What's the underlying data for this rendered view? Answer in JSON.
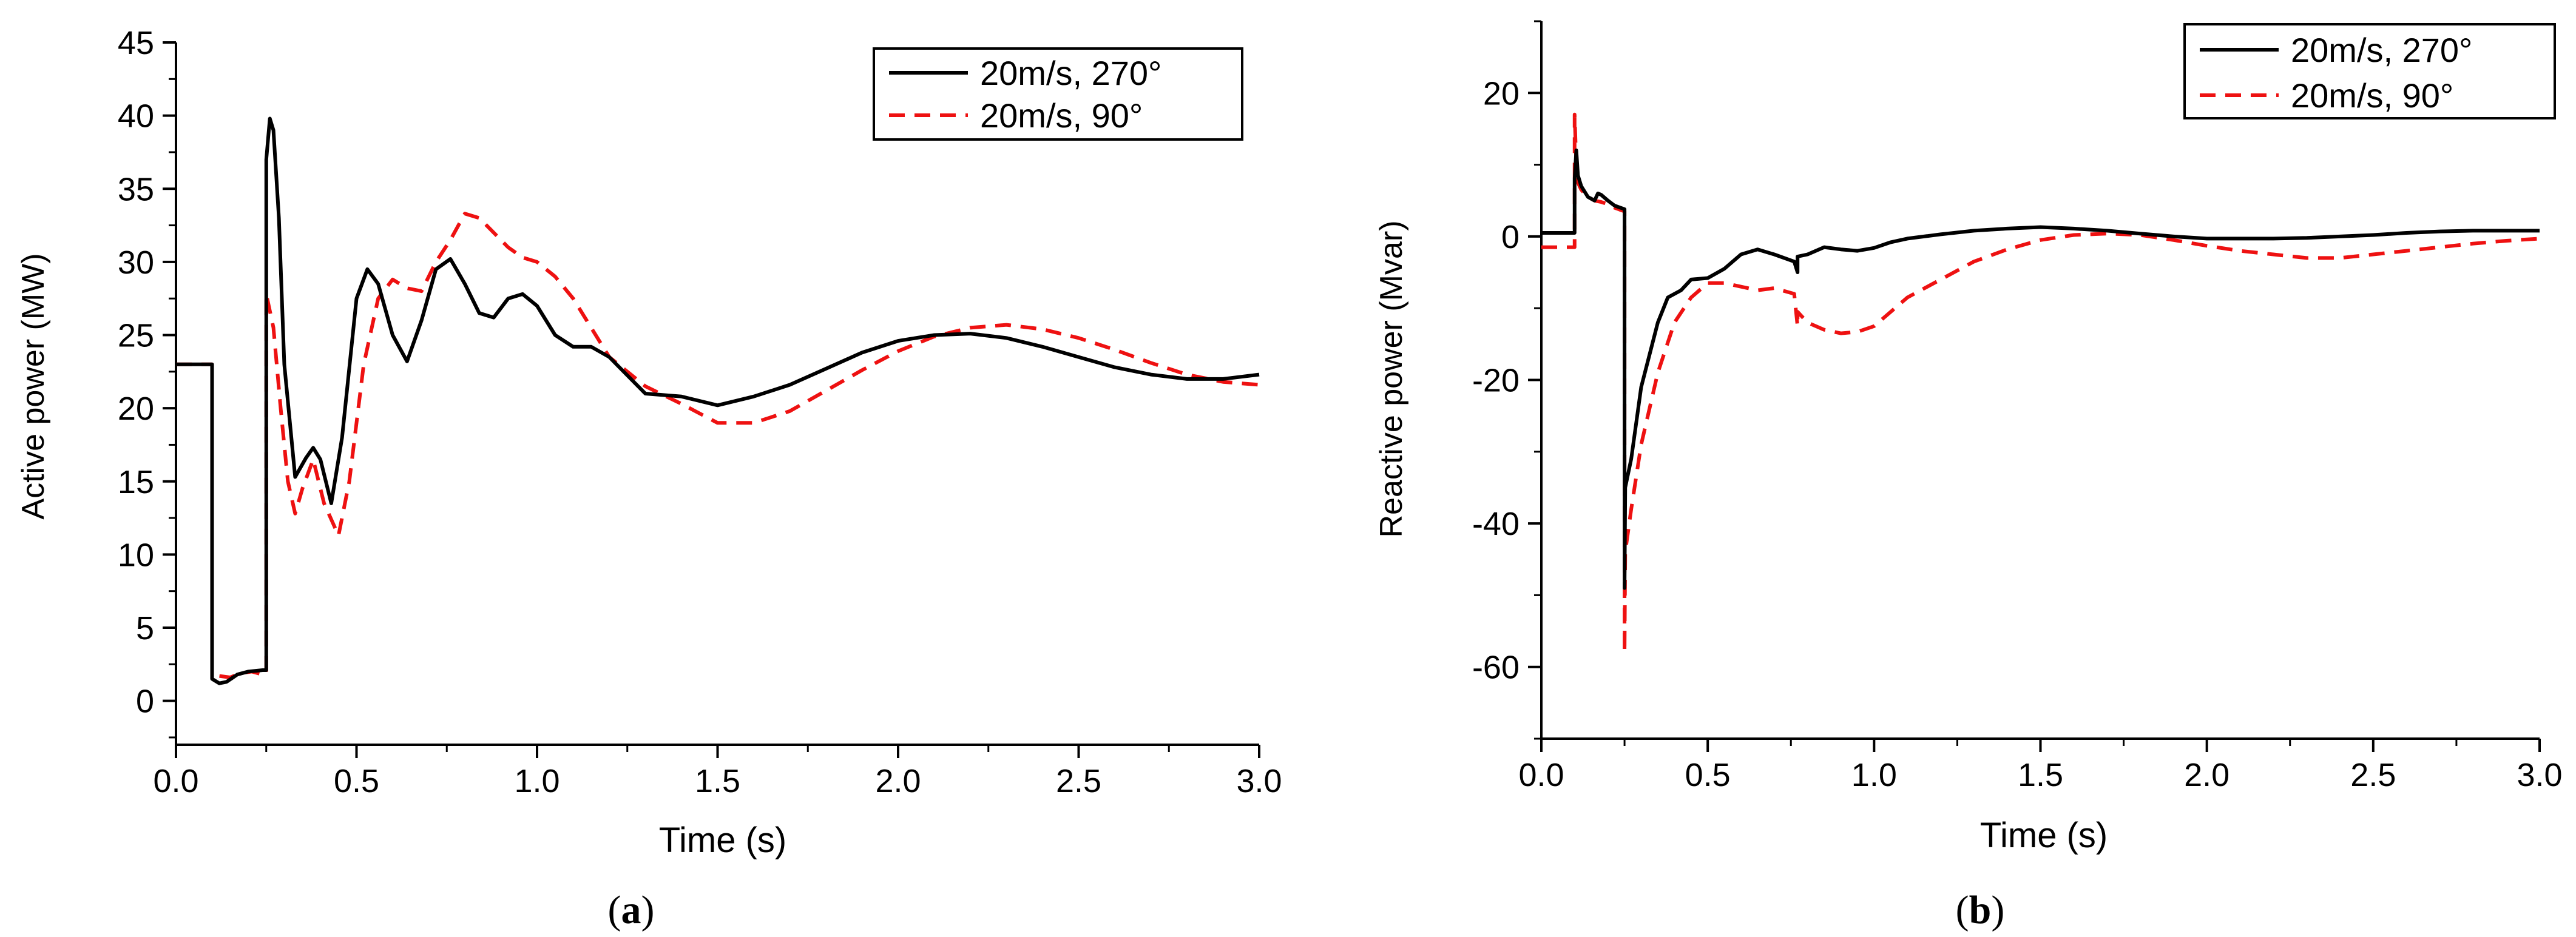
{
  "chart_data": [
    {
      "type": "line",
      "panel_label": "a",
      "xlabel": "Time (s)",
      "ylabel": "Active power (MW)",
      "xlim": [
        0,
        3
      ],
      "ylim": [
        -3,
        45
      ],
      "xticks": [
        0.0,
        0.5,
        1.0,
        1.5,
        2.0,
        2.5,
        3.0
      ],
      "xtick_labels": [
        "0.0",
        "0.5",
        "1.0",
        "1.5",
        "2.0",
        "2.5",
        "3.0"
      ],
      "yticks": [
        0,
        5,
        10,
        15,
        20,
        25,
        30,
        35,
        40,
        45
      ],
      "ytick_labels": [
        "0",
        "5",
        "10",
        "15",
        "20",
        "25",
        "30",
        "35",
        "40",
        "45"
      ],
      "legend_position": "top-right",
      "series": [
        {
          "name": "20m/s, 270°",
          "color": "#000000",
          "style": "solid",
          "x": [
            0,
            0.1,
            0.1,
            0.12,
            0.14,
            0.17,
            0.2,
            0.24,
            0.25,
            0.25,
            0.26,
            0.27,
            0.285,
            0.3,
            0.33,
            0.36,
            0.38,
            0.4,
            0.43,
            0.46,
            0.5,
            0.53,
            0.56,
            0.6,
            0.64,
            0.68,
            0.72,
            0.76,
            0.8,
            0.84,
            0.88,
            0.92,
            0.96,
            1.0,
            1.05,
            1.1,
            1.15,
            1.2,
            1.3,
            1.4,
            1.5,
            1.6,
            1.7,
            1.8,
            1.9,
            2.0,
            2.1,
            2.2,
            2.3,
            2.4,
            2.5,
            2.6,
            2.7,
            2.8,
            2.9,
            3.0
          ],
          "y": [
            23,
            23,
            1.5,
            1.2,
            1.3,
            1.8,
            2,
            2.1,
            2.1,
            37,
            39.8,
            39,
            33,
            23,
            15.3,
            16.6,
            17.3,
            16.5,
            13.5,
            18,
            27.5,
            29.5,
            28.5,
            25,
            23.2,
            26,
            29.5,
            30.2,
            28.5,
            26.5,
            26.2,
            27.5,
            27.8,
            27,
            25,
            24.2,
            24.2,
            23.5,
            21,
            20.8,
            20.2,
            20.8,
            21.6,
            22.7,
            23.8,
            24.6,
            25,
            25.1,
            24.8,
            24.2,
            23.5,
            22.8,
            22.3,
            22,
            22,
            22.3
          ]
        },
        {
          "name": "20m/s, 90°",
          "color": "#ee1111",
          "style": "dashed",
          "x": [
            0,
            0.1,
            0.1,
            0.12,
            0.15,
            0.18,
            0.21,
            0.24,
            0.25,
            0.25,
            0.27,
            0.29,
            0.31,
            0.33,
            0.35,
            0.38,
            0.41,
            0.45,
            0.48,
            0.52,
            0.56,
            0.6,
            0.64,
            0.68,
            0.72,
            0.76,
            0.8,
            0.84,
            0.88,
            0.92,
            0.96,
            1.0,
            1.05,
            1.1,
            1.2,
            1.3,
            1.4,
            1.5,
            1.6,
            1.7,
            1.8,
            1.9,
            2.0,
            2.1,
            2.2,
            2.3,
            2.4,
            2.5,
            2.6,
            2.7,
            2.8,
            2.9,
            3.0
          ],
          "y": [
            23,
            23,
            1.6,
            1.7,
            1.6,
            1.9,
            2.0,
            1.8,
            1.8,
            27.8,
            25.5,
            20,
            15,
            12.8,
            14.5,
            16.5,
            13.5,
            11.3,
            15,
            23,
            27.5,
            28.8,
            28.2,
            28,
            30,
            31.5,
            33.3,
            33,
            32,
            31,
            30.3,
            30,
            29,
            27.5,
            23.5,
            21.5,
            20.3,
            19,
            19,
            19.8,
            21.2,
            22.6,
            23.9,
            24.9,
            25.5,
            25.7,
            25.4,
            24.8,
            24,
            23.1,
            22.3,
            21.8,
            21.6
          ]
        }
      ]
    },
    {
      "type": "line",
      "panel_label": "b",
      "xlabel": "Time (s)",
      "ylabel": "Reactive power (Mvar)",
      "xlim": [
        0,
        3
      ],
      "ylim": [
        -70,
        30
      ],
      "xticks": [
        0.0,
        0.5,
        1.0,
        1.5,
        2.0,
        2.5,
        3.0
      ],
      "xtick_labels": [
        "0.0",
        "0.5",
        "1.0",
        "1.5",
        "2.0",
        "2.5",
        "3.0"
      ],
      "yticks": [
        -60,
        -40,
        -20,
        0,
        20
      ],
      "ytick_labels": [
        "-60",
        "-40",
        "-20",
        "0",
        "20"
      ],
      "legend_position": "top-right",
      "series": [
        {
          "name": "20m/s, 270°",
          "color": "#000000",
          "style": "solid",
          "x": [
            0,
            0.1,
            0.1,
            0.105,
            0.11,
            0.12,
            0.14,
            0.16,
            0.17,
            0.18,
            0.2,
            0.22,
            0.25,
            0.25,
            0.252,
            0.27,
            0.3,
            0.35,
            0.38,
            0.42,
            0.45,
            0.5,
            0.55,
            0.6,
            0.65,
            0.7,
            0.76,
            0.76,
            0.77,
            0.77,
            0.8,
            0.85,
            0.9,
            0.95,
            1.0,
            1.05,
            1.1,
            1.2,
            1.3,
            1.4,
            1.5,
            1.6,
            1.7,
            1.8,
            1.9,
            2.0,
            2.1,
            2.2,
            2.3,
            2.4,
            2.5,
            2.6,
            2.7,
            2.8,
            2.9,
            3.0
          ],
          "y": [
            0.5,
            0.5,
            8,
            12,
            8.5,
            7,
            5.5,
            5,
            6,
            5.8,
            5,
            4.3,
            3.8,
            -49,
            -35,
            -31,
            -21,
            -12,
            -8.5,
            -7.5,
            -6,
            -5.8,
            -4.5,
            -2.5,
            -1.8,
            -2.5,
            -3.5,
            -3.5,
            -5,
            -2.8,
            -2.5,
            -1.5,
            -1.8,
            -2,
            -1.6,
            -0.8,
            -0.3,
            0.3,
            0.8,
            1.1,
            1.3,
            1.1,
            0.8,
            0.4,
            0,
            -0.3,
            -0.3,
            -0.3,
            -0.2,
            0,
            0.2,
            0.5,
            0.7,
            0.8,
            0.8,
            0.8
          ]
        },
        {
          "name": "20m/s, 90°",
          "color": "#ee1111",
          "style": "dashed",
          "x": [
            0,
            0.1,
            0.1,
            0.105,
            0.11,
            0.12,
            0.14,
            0.16,
            0.18,
            0.2,
            0.22,
            0.25,
            0.25,
            0.252,
            0.27,
            0.3,
            0.35,
            0.4,
            0.45,
            0.5,
            0.55,
            0.6,
            0.65,
            0.7,
            0.76,
            0.77,
            0.77,
            0.78,
            0.8,
            0.85,
            0.9,
            0.95,
            1.0,
            1.05,
            1.1,
            1.2,
            1.3,
            1.4,
            1.5,
            1.6,
            1.7,
            1.8,
            1.9,
            2.0,
            2.1,
            2.2,
            2.3,
            2.4,
            2.5,
            2.6,
            2.7,
            2.8,
            2.9,
            3.0
          ],
          "y": [
            -1.5,
            -1.5,
            17,
            10,
            7.5,
            6.5,
            5.5,
            5,
            4.8,
            4.5,
            4,
            3.5,
            -58,
            -44,
            -38,
            -29,
            -19,
            -12,
            -8.5,
            -6.5,
            -6.5,
            -7,
            -7.5,
            -7.2,
            -8,
            -12.5,
            -10.5,
            -11,
            -12,
            -13,
            -13.5,
            -13.3,
            -12.5,
            -10.5,
            -8.5,
            -6,
            -3.5,
            -1.8,
            -0.5,
            0.2,
            0.4,
            0.2,
            -0.5,
            -1.3,
            -2,
            -2.5,
            -3,
            -3,
            -2.5,
            -2,
            -1.5,
            -1,
            -0.6,
            -0.3
          ]
        }
      ]
    }
  ]
}
